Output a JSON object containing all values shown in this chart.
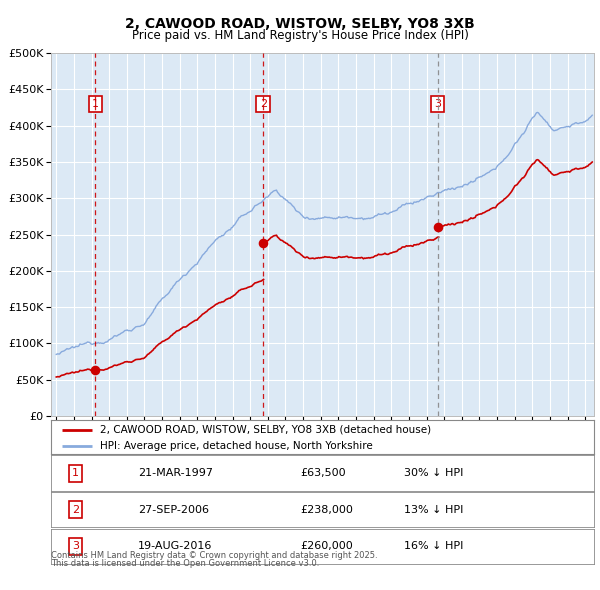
{
  "title": "2, CAWOOD ROAD, WISTOW, SELBY, YO8 3XB",
  "subtitle": "Price paid vs. HM Land Registry's House Price Index (HPI)",
  "ylim": [
    0,
    500000
  ],
  "yticks": [
    0,
    50000,
    100000,
    150000,
    200000,
    250000,
    300000,
    350000,
    400000,
    450000,
    500000
  ],
  "bg_color": "#dce9f5",
  "grid_color": "#ffffff",
  "sale_year_nums": [
    1997.22,
    2006.74,
    2016.63
  ],
  "sale_prices": [
    63500,
    238000,
    260000
  ],
  "sale_labels": [
    "1",
    "2",
    "3"
  ],
  "sale_display_dates": [
    "21-MAR-1997",
    "27-SEP-2006",
    "19-AUG-2016"
  ],
  "sale_price_strs": [
    "£63,500",
    "£238,000",
    "£260,000"
  ],
  "sale_pct_strs": [
    "30% ↓ HPI",
    "13% ↓ HPI",
    "16% ↓ HPI"
  ],
  "legend_line1": "2, CAWOOD ROAD, WISTOW, SELBY, YO8 3XB (detached house)",
  "legend_line2": "HPI: Average price, detached house, North Yorkshire",
  "footer_line1": "Contains HM Land Registry data © Crown copyright and database right 2025.",
  "footer_line2": "This data is licensed under the Open Government Licence v3.0.",
  "sale_color": "#cc0000",
  "hpi_color": "#88aadd",
  "vline_color_12": "#cc0000",
  "vline_color_3": "#888888",
  "box_color": "#cc0000",
  "xstart": 1994.7,
  "xend": 2025.5
}
